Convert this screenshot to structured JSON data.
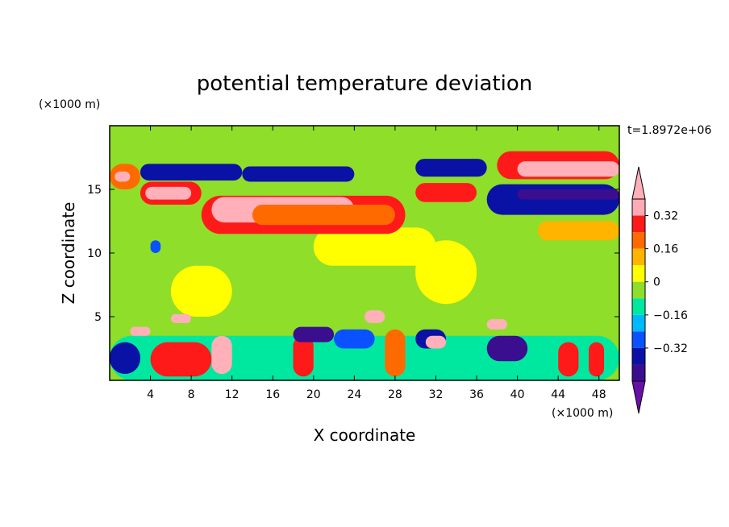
{
  "chart_data": {
    "type": "heatmap",
    "title": "potential temperature deviation",
    "xlabel": "X coordinate",
    "ylabel": "Z coordinate",
    "x_unit": "(×1000 m)",
    "y_unit": "(×1000 m)",
    "time_label": "t=1.8972e+06",
    "xlim": [
      0,
      50
    ],
    "ylim": [
      0,
      20
    ],
    "x_ticks": [
      4,
      8,
      12,
      16,
      20,
      24,
      28,
      32,
      36,
      40,
      44,
      48
    ],
    "y_ticks": [
      5,
      10,
      15
    ],
    "colorbar": {
      "levels": [
        -0.48,
        -0.4,
        -0.32,
        -0.24,
        -0.16,
        -0.08,
        0,
        0.08,
        0.16,
        0.24,
        0.32,
        0.4
      ],
      "labels": [
        "0.32",
        "0.16",
        "0",
        "−0.16",
        "−0.32"
      ],
      "label_values": [
        0.32,
        0.16,
        0,
        -0.16,
        -0.32
      ],
      "colors": [
        "#6a0fa6",
        "#3a0e8e",
        "#0a12a5",
        "#0a52ff",
        "#00b8ff",
        "#00e8a0",
        "#8fde2a",
        "#ffff00",
        "#ffb400",
        "#ff6a00",
        "#ff1a1a",
        "#ffaab4",
        "#ffb0b8"
      ],
      "extend": "both"
    },
    "background_value": -0.05,
    "features": [
      {
        "x": [
          0,
          50
        ],
        "z": [
          3.5,
          10.5
        ],
        "value": -0.05
      },
      {
        "x": [
          4,
          50
        ],
        "z": [
          17,
          20
        ],
        "value": -0.05
      },
      {
        "x": [
          20,
          32
        ],
        "z": [
          9,
          12
        ],
        "value": 0.03
      },
      {
        "x": [
          30,
          36
        ],
        "z": [
          6,
          11
        ],
        "value": 0.03
      },
      {
        "x": [
          6,
          12
        ],
        "z": [
          5,
          9
        ],
        "value": 0.03
      },
      {
        "x": [
          0,
          3
        ],
        "z": [
          15,
          17
        ],
        "value": 0.22
      },
      {
        "x": [
          0.5,
          2
        ],
        "z": [
          15.6,
          16.4
        ],
        "value": 0.45
      },
      {
        "x": [
          3,
          13
        ],
        "z": [
          15.7,
          17
        ],
        "value": -0.34
      },
      {
        "x": [
          13,
          24
        ],
        "z": [
          15.6,
          16.8
        ],
        "value": -0.33
      },
      {
        "x": [
          30,
          37
        ],
        "z": [
          16,
          17.4
        ],
        "value": -0.33
      },
      {
        "x": [
          3,
          9
        ],
        "z": [
          13.8,
          15.6
        ],
        "value": 0.28
      },
      {
        "x": [
          3.5,
          8
        ],
        "z": [
          14.2,
          15.2
        ],
        "value": 0.45
      },
      {
        "x": [
          9,
          29
        ],
        "z": [
          11.5,
          14.5
        ],
        "value": 0.26
      },
      {
        "x": [
          10,
          24
        ],
        "z": [
          12.4,
          14.4
        ],
        "value": 0.45
      },
      {
        "x": [
          30,
          36
        ],
        "z": [
          14,
          15.5
        ],
        "value": 0.26
      },
      {
        "x": [
          38,
          50
        ],
        "z": [
          15.8,
          18
        ],
        "value": 0.26
      },
      {
        "x": [
          40,
          50
        ],
        "z": [
          16,
          17.2
        ],
        "value": 0.45
      },
      {
        "x": [
          37,
          50
        ],
        "z": [
          13,
          15.4
        ],
        "value": -0.38
      },
      {
        "x": [
          40,
          50
        ],
        "z": [
          14.2,
          15
        ],
        "value": -0.46
      },
      {
        "x": [
          14,
          28
        ],
        "z": [
          12.2,
          13.8
        ],
        "value": 0.2
      },
      {
        "x": [
          0,
          50
        ],
        "z": [
          0,
          3.5
        ],
        "value": -0.1
      },
      {
        "x": [
          4,
          10
        ],
        "z": [
          0.3,
          3
        ],
        "value": 0.3
      },
      {
        "x": [
          10,
          12
        ],
        "z": [
          0.5,
          3.5
        ],
        "value": 0.45
      },
      {
        "x": [
          18,
          20
        ],
        "z": [
          0.3,
          3.5
        ],
        "value": 0.3
      },
      {
        "x": [
          18,
          22
        ],
        "z": [
          3,
          4.2
        ],
        "value": -0.45
      },
      {
        "x": [
          27,
          29
        ],
        "z": [
          0.3,
          4
        ],
        "value": 0.2
      },
      {
        "x": [
          30,
          33
        ],
        "z": [
          2.5,
          4
        ],
        "value": -0.4
      },
      {
        "x": [
          31,
          33
        ],
        "z": [
          2.5,
          3.5
        ],
        "value": 0.45
      },
      {
        "x": [
          37,
          41
        ],
        "z": [
          1.5,
          3.5
        ],
        "value": -0.45
      },
      {
        "x": [
          44,
          46
        ],
        "z": [
          0.3,
          3
        ],
        "value": 0.3
      },
      {
        "x": [
          47,
          48.5
        ],
        "z": [
          0.3,
          3
        ],
        "value": 0.3
      },
      {
        "x": [
          0,
          3
        ],
        "z": [
          0.5,
          3
        ],
        "value": -0.35
      },
      {
        "x": [
          22,
          26
        ],
        "z": [
          2.5,
          4
        ],
        "value": -0.3
      },
      {
        "x": [
          25,
          27
        ],
        "z": [
          4.5,
          5.5
        ],
        "value": 0.45
      },
      {
        "x": [
          37,
          39
        ],
        "z": [
          4,
          4.8
        ],
        "value": 0.45
      },
      {
        "x": [
          6,
          8
        ],
        "z": [
          4.5,
          5.2
        ],
        "value": 0.45
      },
      {
        "x": [
          2,
          4
        ],
        "z": [
          3.5,
          4.2
        ],
        "value": 0.45
      },
      {
        "x": [
          42,
          50
        ],
        "z": [
          11,
          12.5
        ],
        "value": 0.08
      },
      {
        "x": [
          4,
          5
        ],
        "z": [
          10,
          11
        ],
        "value": -0.3
      }
    ]
  }
}
